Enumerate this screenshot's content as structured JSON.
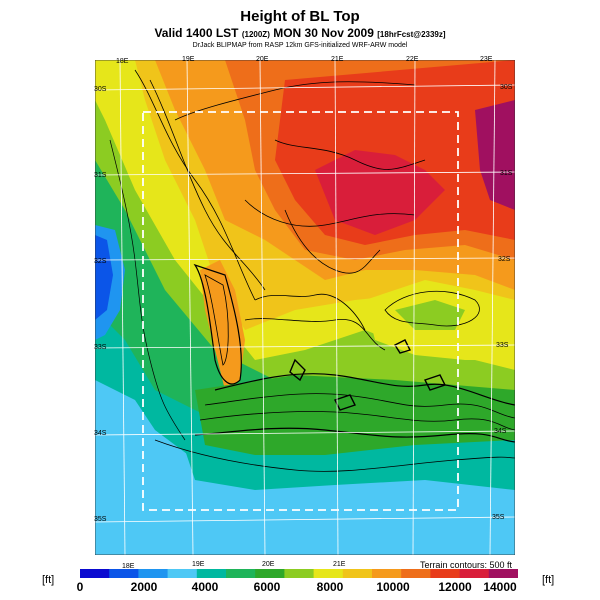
{
  "header": {
    "title": "Height of BL Top",
    "valid_line_a": "Valid 1400 LST ",
    "valid_line_small": "(1200Z)",
    "valid_line_b": " MON 30 Nov 2009 ",
    "valid_line_small2": "[18hrFcst@2339z]",
    "source_line": "DrJack BLIPMAP from RASP 12km GFS-initialized WRF-ARW model"
  },
  "map": {
    "lon_labels_top": [
      "18E",
      "19E",
      "20E",
      "21E",
      "22E",
      "23E"
    ],
    "lon_labels_bottom": [
      "18E",
      "19E",
      "20E",
      "21E"
    ],
    "lat_labels_left": [
      "30S",
      "31S",
      "32S",
      "33S",
      "34S",
      "35S"
    ],
    "lat_labels_right": [
      "30S",
      "31S",
      "32S",
      "33S",
      "34S",
      "35S"
    ],
    "terrain_note": "Terrain contours: 500 ft"
  },
  "colorbar": {
    "unit_left": "[ft]",
    "unit_right": "[ft]",
    "tick_labels": [
      "0",
      "2000",
      "4000",
      "6000",
      "8000",
      "10000",
      "12000",
      "14000"
    ],
    "colors": [
      "#0a0ad0",
      "#0b55e8",
      "#1f95f0",
      "#4ec8f5",
      "#00b8a0",
      "#1fb45a",
      "#2ea82a",
      "#8ccc22",
      "#e6e61a",
      "#f0c41a",
      "#f59a1c",
      "#ee6e1a",
      "#e83c1a",
      "#d91e3a",
      "#a01060"
    ]
  }
}
